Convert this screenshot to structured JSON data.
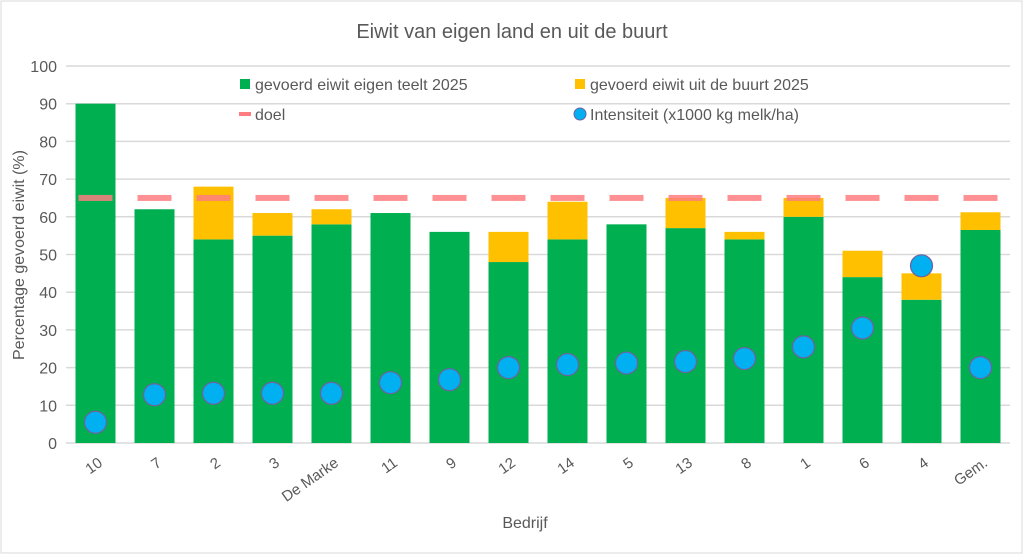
{
  "chart_data": {
    "type": "bar",
    "title": "Eiwit van eigen land en uit de buurt",
    "xlabel": "Bedrijf",
    "ylabel": "Percentage gevoerd eiwit (%)",
    "ylim": [
      0,
      100
    ],
    "yticks": [
      "0",
      "10",
      "20",
      "30",
      "40",
      "50",
      "60",
      "70",
      "80",
      "90",
      "100"
    ],
    "grid": true,
    "legend_position": "top",
    "categories": [
      "10",
      "7",
      "2",
      "3",
      "De Marke",
      "11",
      "9",
      "12",
      "14",
      "5",
      "13",
      "8",
      "1",
      "6",
      "4",
      "Gem."
    ],
    "series": [
      {
        "name": "gevoerd eiwit eigen teelt 2025",
        "kind": "stacked-bar",
        "color": "#00b050",
        "values": [
          90,
          62,
          54,
          55,
          58,
          61,
          56,
          48,
          54,
          58,
          57,
          54,
          60,
          44,
          38,
          56.5
        ]
      },
      {
        "name": "gevoerd eiwit uit de buurt 2025",
        "kind": "stacked-bar",
        "color": "#ffc000",
        "values": [
          0,
          0,
          14,
          6,
          4,
          0,
          0,
          8,
          10,
          0,
          8,
          2,
          5,
          7,
          7,
          4.7
        ]
      },
      {
        "name": "doel",
        "kind": "dash",
        "color": "#ff7c80",
        "values": [
          65,
          65,
          65,
          65,
          65,
          65,
          65,
          65,
          65,
          65,
          65,
          65,
          65,
          65,
          65,
          65
        ]
      },
      {
        "name": "Intensiteit (x1000 kg melk/ha)",
        "kind": "marker",
        "color": "#00b0f0",
        "values": [
          5.5,
          12.8,
          13.2,
          13.2,
          13.2,
          16,
          16.8,
          20,
          20.8,
          21.2,
          21.6,
          22.4,
          25.5,
          30.5,
          47,
          20
        ]
      }
    ]
  }
}
